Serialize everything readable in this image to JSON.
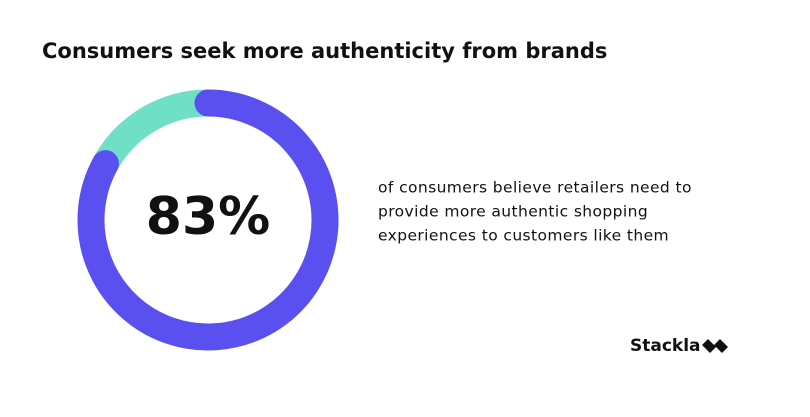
{
  "chart_data": {
    "type": "donut",
    "title": "Consumers seek more authenticity from brands",
    "values": [
      83,
      17
    ],
    "value_labels": [
      "83%",
      null
    ],
    "colors": [
      "#5a50f0",
      "#6fe0c5"
    ],
    "description": [
      "of consumers believe retailers  need to",
      "provide more authentic  shopping",
      "experiences to  customers like them"
    ],
    "brand": "Stackla"
  }
}
